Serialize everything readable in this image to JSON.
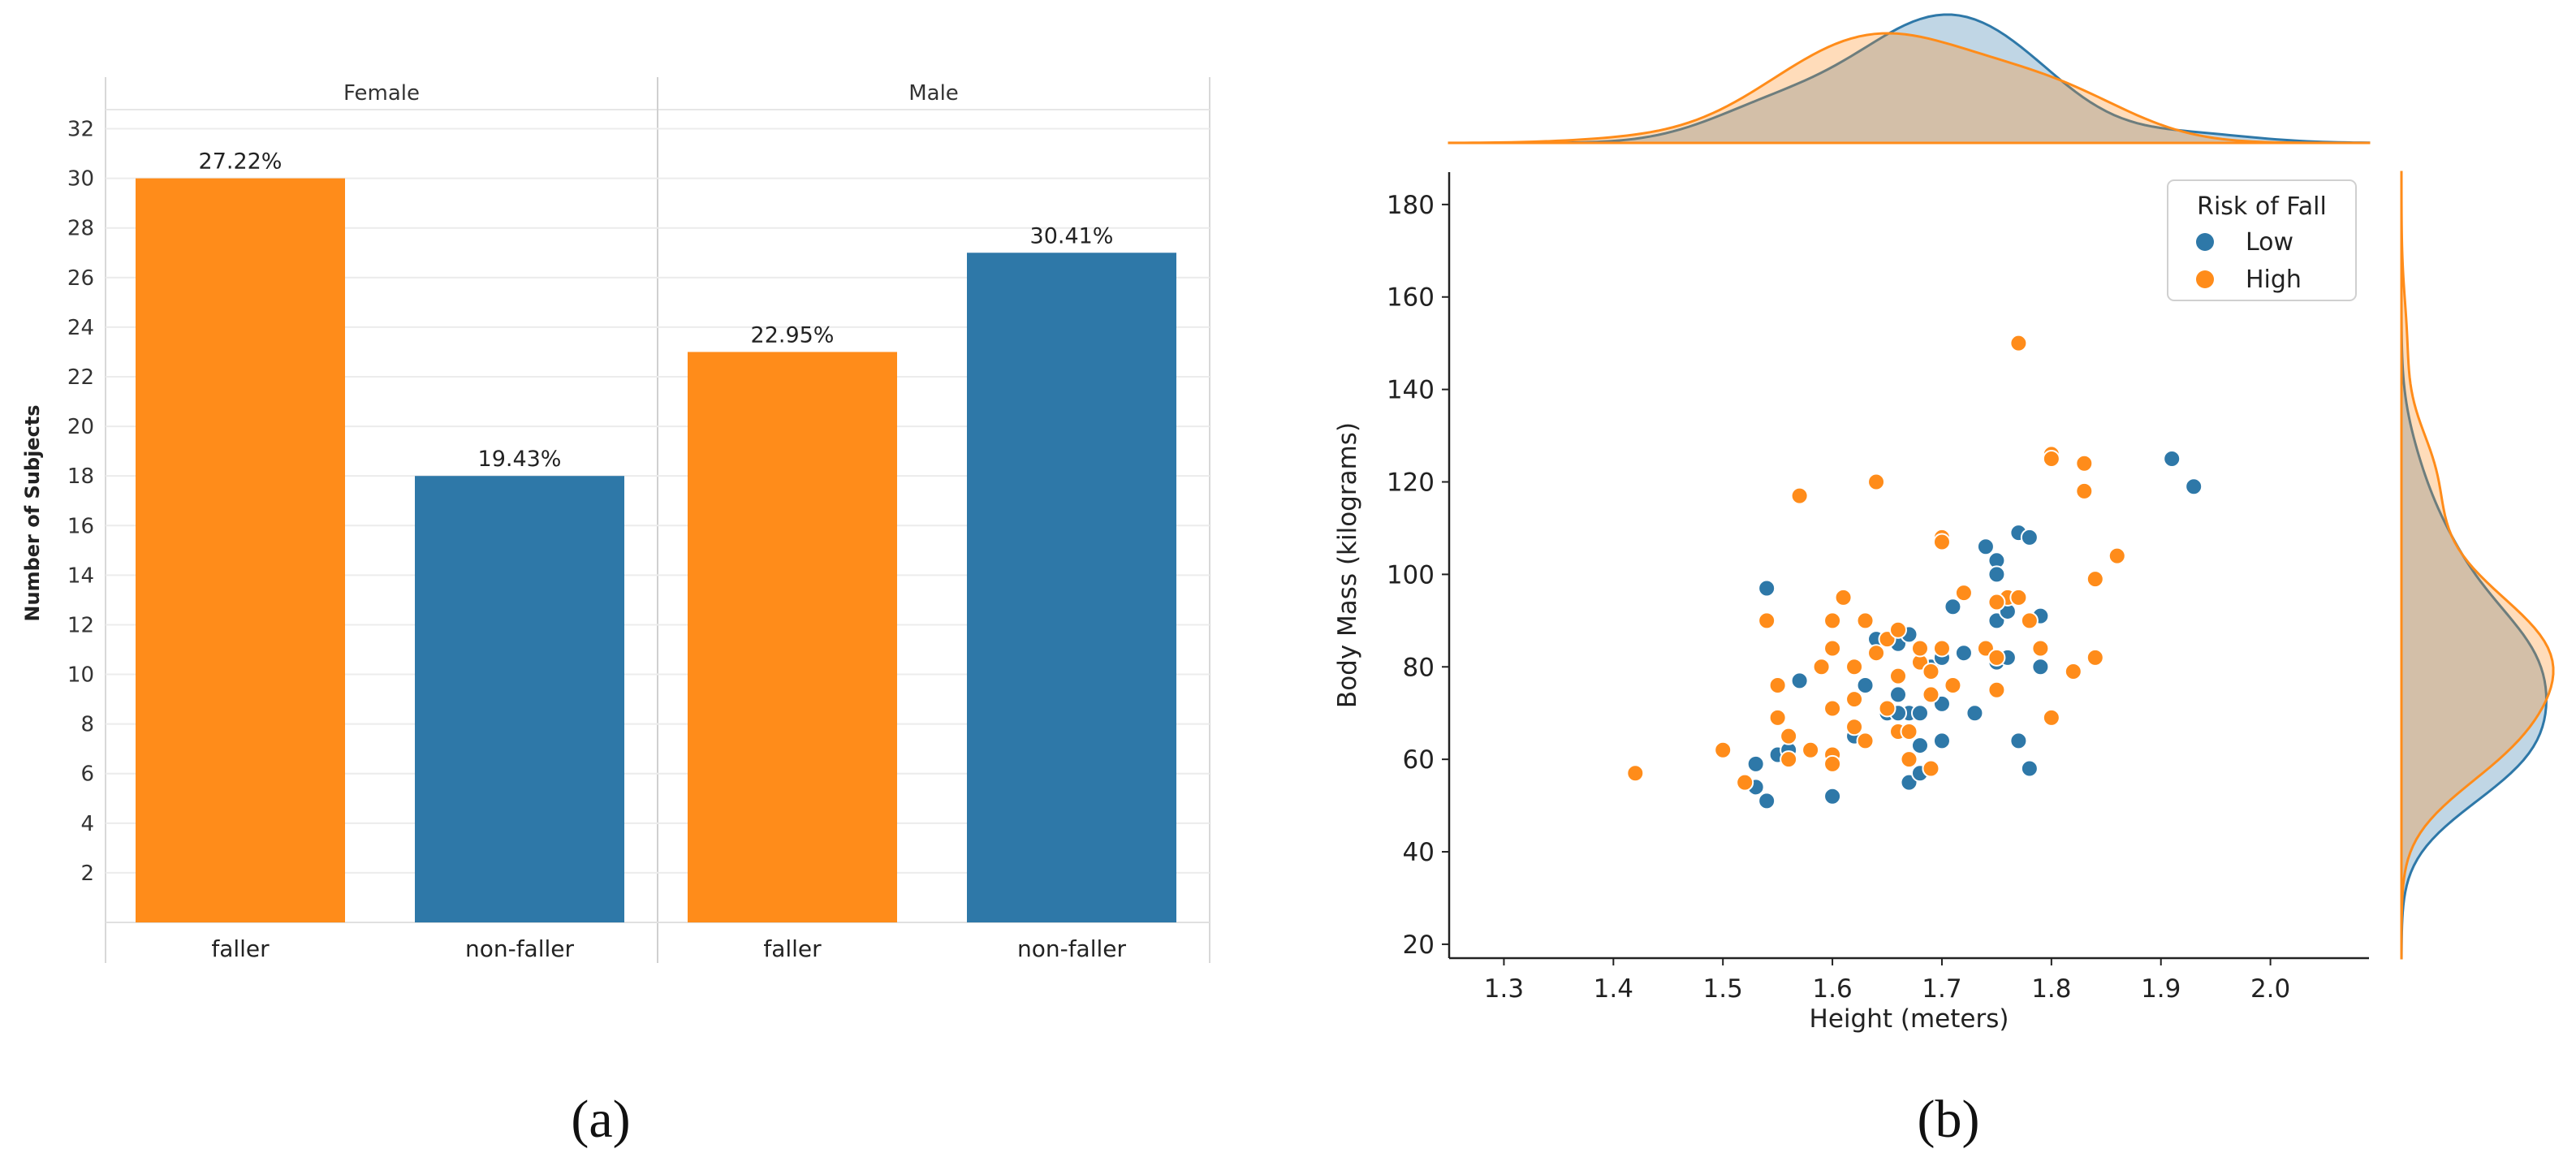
{
  "captions": {
    "a": "(a)",
    "b": "(b)"
  },
  "colors": {
    "orange": "#ff8c1a",
    "blue": "#2e78a8",
    "overlap": "#c8c3bd"
  },
  "chart_data": [
    {
      "type": "bar",
      "ylabel": "Number of Subjects",
      "ylim": [
        0,
        33
      ],
      "yticks": [
        2,
        4,
        6,
        8,
        10,
        12,
        14,
        16,
        18,
        20,
        22,
        24,
        26,
        28,
        30,
        32
      ],
      "facets": [
        {
          "title": "Female",
          "bars": [
            {
              "category": "faller",
              "value": 30,
              "label": "27.22%",
              "color": "orange"
            },
            {
              "category": "non-faller",
              "value": 18,
              "label": "19.43%",
              "color": "blue"
            }
          ]
        },
        {
          "title": "Male",
          "bars": [
            {
              "category": "faller",
              "value": 23,
              "label": "22.95%",
              "color": "orange"
            },
            {
              "category": "non-faller",
              "value": 27,
              "label": "30.41%",
              "color": "blue"
            }
          ]
        }
      ]
    },
    {
      "type": "scatter",
      "xlabel": "Height (meters)",
      "ylabel": "Body Mass (kilograms)",
      "xlim": [
        1.25,
        2.09
      ],
      "ylim": [
        17,
        187
      ],
      "xticks": [
        "1.3",
        "1.4",
        "1.5",
        "1.6",
        "1.7",
        "1.8",
        "1.9",
        "2.0"
      ],
      "yticks": [
        "20",
        "40",
        "60",
        "80",
        "100",
        "120",
        "140",
        "160",
        "180"
      ],
      "legend": {
        "title": "Risk of Fall",
        "position": "top-right",
        "entries": [
          "Low",
          "High"
        ]
      },
      "series": [
        {
          "name": "Low",
          "color": "blue",
          "points": [
            [
              1.54,
              97
            ],
            [
              1.53,
              59
            ],
            [
              1.53,
              54
            ],
            [
              1.54,
              51
            ],
            [
              1.55,
              61
            ],
            [
              1.56,
              62
            ],
            [
              1.57,
              77
            ],
            [
              1.6,
              52
            ],
            [
              1.62,
              65
            ],
            [
              1.63,
              76
            ],
            [
              1.64,
              86
            ],
            [
              1.65,
              70
            ],
            [
              1.66,
              74
            ],
            [
              1.66,
              85
            ],
            [
              1.67,
              87
            ],
            [
              1.67,
              70
            ],
            [
              1.68,
              70
            ],
            [
              1.66,
              70
            ],
            [
              1.67,
              55
            ],
            [
              1.68,
              57
            ],
            [
              1.69,
              80
            ],
            [
              1.7,
              72
            ],
            [
              1.7,
              82
            ],
            [
              1.71,
              93
            ],
            [
              1.72,
              83
            ],
            [
              1.73,
              70
            ],
            [
              1.74,
              106
            ],
            [
              1.75,
              103
            ],
            [
              1.75,
              100
            ],
            [
              1.75,
              90
            ],
            [
              1.75,
              81
            ],
            [
              1.76,
              92
            ],
            [
              1.77,
              109
            ],
            [
              1.78,
              108
            ],
            [
              1.79,
              91
            ],
            [
              1.79,
              80
            ],
            [
              1.77,
              64
            ],
            [
              1.78,
              58
            ],
            [
              1.7,
              64
            ],
            [
              1.68,
              63
            ],
            [
              1.91,
              125
            ],
            [
              1.93,
              119
            ],
            [
              1.76,
              82
            ],
            [
              1.72,
              83
            ],
            [
              1.69,
              58
            ]
          ]
        },
        {
          "name": "High",
          "color": "orange",
          "points": [
            [
              1.42,
              57
            ],
            [
              1.5,
              62
            ],
            [
              1.52,
              55
            ],
            [
              1.54,
              90
            ],
            [
              1.55,
              76
            ],
            [
              1.55,
              69
            ],
            [
              1.56,
              60
            ],
            [
              1.57,
              117
            ],
            [
              1.58,
              62
            ],
            [
              1.6,
              90
            ],
            [
              1.6,
              84
            ],
            [
              1.6,
              71
            ],
            [
              1.6,
              61
            ],
            [
              1.6,
              59
            ],
            [
              1.61,
              95
            ],
            [
              1.62,
              80
            ],
            [
              1.62,
              73
            ],
            [
              1.62,
              67
            ],
            [
              1.63,
              90
            ],
            [
              1.63,
              64
            ],
            [
              1.64,
              120
            ],
            [
              1.65,
              86
            ],
            [
              1.65,
              71
            ],
            [
              1.66,
              88
            ],
            [
              1.66,
              78
            ],
            [
              1.66,
              66
            ],
            [
              1.67,
              66
            ],
            [
              1.67,
              60
            ],
            [
              1.68,
              81
            ],
            [
              1.68,
              84
            ],
            [
              1.69,
              79
            ],
            [
              1.69,
              74
            ],
            [
              1.7,
              108
            ],
            [
              1.7,
              107
            ],
            [
              1.7,
              84
            ],
            [
              1.71,
              76
            ],
            [
              1.72,
              96
            ],
            [
              1.74,
              84
            ],
            [
              1.75,
              82
            ],
            [
              1.75,
              75
            ],
            [
              1.76,
              95
            ],
            [
              1.77,
              150
            ],
            [
              1.77,
              95
            ],
            [
              1.78,
              90
            ],
            [
              1.79,
              84
            ],
            [
              1.8,
              126
            ],
            [
              1.8,
              125
            ],
            [
              1.8,
              69
            ],
            [
              1.82,
              79
            ],
            [
              1.83,
              124
            ],
            [
              1.83,
              118
            ],
            [
              1.84,
              99
            ],
            [
              1.84,
              82
            ],
            [
              1.86,
              104
            ],
            [
              1.75,
              94
            ],
            [
              1.69,
              58
            ],
            [
              1.64,
              83
            ],
            [
              1.56,
              65
            ],
            [
              1.59,
              80
            ]
          ]
        }
      ]
    }
  ]
}
